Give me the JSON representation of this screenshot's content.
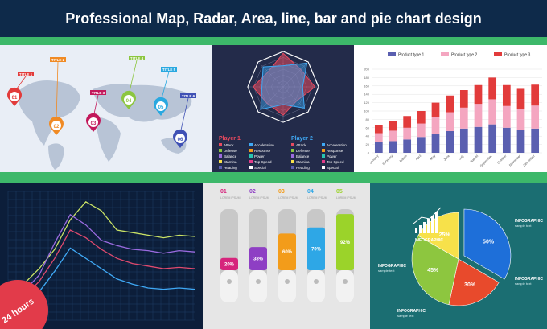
{
  "header": {
    "title": "Professional Map, Radar,  Area, line, bar and pie chart design"
  },
  "colors": {
    "header_bg": "#0e2a4a",
    "accent_green": "#3db86a",
    "badge_red": "#e23b4a"
  },
  "map_panel": {
    "pins": [
      {
        "number": "01",
        "title": "TITLE 1",
        "color": "#e23b3b"
      },
      {
        "number": "02",
        "title": "TITLE 2",
        "color": "#f08a24"
      },
      {
        "number": "03",
        "title": "TITLE 3",
        "color": "#c2185b"
      },
      {
        "number": "04",
        "title": "TITLE 4",
        "color": "#8cc63f"
      },
      {
        "number": "05",
        "title": "TITLE 5",
        "color": "#29a8e0"
      },
      {
        "number": "06",
        "title": "TITLE 6",
        "color": "#3f51b5"
      }
    ]
  },
  "radar_panel": {
    "player1": {
      "title": "Player 1",
      "color": "#e84a5f"
    },
    "player2": {
      "title": "Player 2",
      "color": "#3fa9f5"
    },
    "attributes": [
      "Attack",
      "Acceleration",
      "Defense",
      "Response",
      "Balance",
      "Power",
      "Stamina",
      "Top Speed",
      "Heading",
      "Special"
    ]
  },
  "chart_data": [
    {
      "type": "bar",
      "title": "",
      "xlabel": "",
      "ylabel": "",
      "categories": [
        "January",
        "February",
        "March",
        "April",
        "May",
        "June",
        "July",
        "August",
        "September",
        "October",
        "November",
        "December"
      ],
      "series": [
        {
          "name": "Product type 1",
          "color": "#5a5fb0",
          "values": [
            25,
            28,
            32,
            38,
            45,
            52,
            58,
            62,
            68,
            60,
            55,
            58
          ]
        },
        {
          "name": "Product type 2",
          "color": "#f4a6c0",
          "values": [
            22,
            25,
            28,
            32,
            40,
            45,
            50,
            55,
            60,
            52,
            50,
            55
          ]
        },
        {
          "name": "Product type 3",
          "color": "#e23b3b",
          "values": [
            20,
            22,
            28,
            30,
            35,
            40,
            42,
            45,
            52,
            50,
            48,
            50
          ]
        }
      ],
      "yticks": [
        "0",
        "20",
        "40",
        "60",
        "80",
        "100",
        "120",
        "140",
        "160",
        "180",
        "200"
      ],
      "ylim": [
        0,
        200
      ],
      "legend": "top"
    },
    {
      "type": "line",
      "title": "",
      "xlabel": "",
      "ylabel": "",
      "x": [
        0,
        1,
        2,
        3,
        4,
        5,
        6,
        7,
        8,
        9,
        10,
        11,
        12
      ],
      "series": [
        {
          "color": "#c9e265",
          "values": [
            20,
            28,
            40,
            55,
            78,
            92,
            85,
            70,
            68,
            66,
            64,
            66,
            65
          ]
        },
        {
          "color": "#9b6be0",
          "values": [
            15,
            22,
            35,
            60,
            82,
            74,
            62,
            58,
            55,
            54,
            52,
            54,
            53
          ]
        },
        {
          "color": "#e04a6e",
          "values": [
            10,
            18,
            30,
            48,
            70,
            64,
            55,
            48,
            44,
            42,
            40,
            41,
            40
          ]
        },
        {
          "color": "#3fa9f5",
          "values": [
            5,
            10,
            22,
            38,
            56,
            48,
            40,
            32,
            28,
            25,
            24,
            25,
            24
          ]
        }
      ],
      "ylim": [
        0,
        100
      ],
      "grid": true
    },
    {
      "type": "bar",
      "title": "",
      "xlabel": "",
      "ylabel": "",
      "categories": [
        "01",
        "02",
        "03",
        "04",
        "05"
      ],
      "category_labels": [
        "LOREM IPSUM",
        "LOREM IPSUM",
        "LOREM IPSUM",
        "LOREM IPSUM",
        "LOREM IPSUM"
      ],
      "values": [
        20,
        38,
        60,
        70,
        92
      ],
      "value_labels": [
        "20%",
        "38%",
        "60%",
        "70%",
        "92%"
      ],
      "colors": [
        "#d6247c",
        "#8e3fc4",
        "#f39c1a",
        "#2ea7e6",
        "#9bd32a"
      ],
      "ylim": [
        0,
        100
      ]
    },
    {
      "type": "pie",
      "title": "INFOGRAPHIC",
      "labels": [
        "INFOGRAPHIC",
        "INFOGRAPHIC",
        "INFOGRAPHIC",
        "INFOGRAPHIC"
      ],
      "sublabels": [
        "sample text",
        "sample text",
        "sample text",
        "sample text"
      ],
      "values": [
        50,
        30,
        45,
        25
      ],
      "value_labels": [
        "50%",
        "30%",
        "45%",
        "25%"
      ],
      "colors": [
        "#1e6fd9",
        "#e84a2c",
        "#8dc63f",
        "#f7e14a"
      ]
    }
  ],
  "badge": {
    "text": "24 hours"
  }
}
